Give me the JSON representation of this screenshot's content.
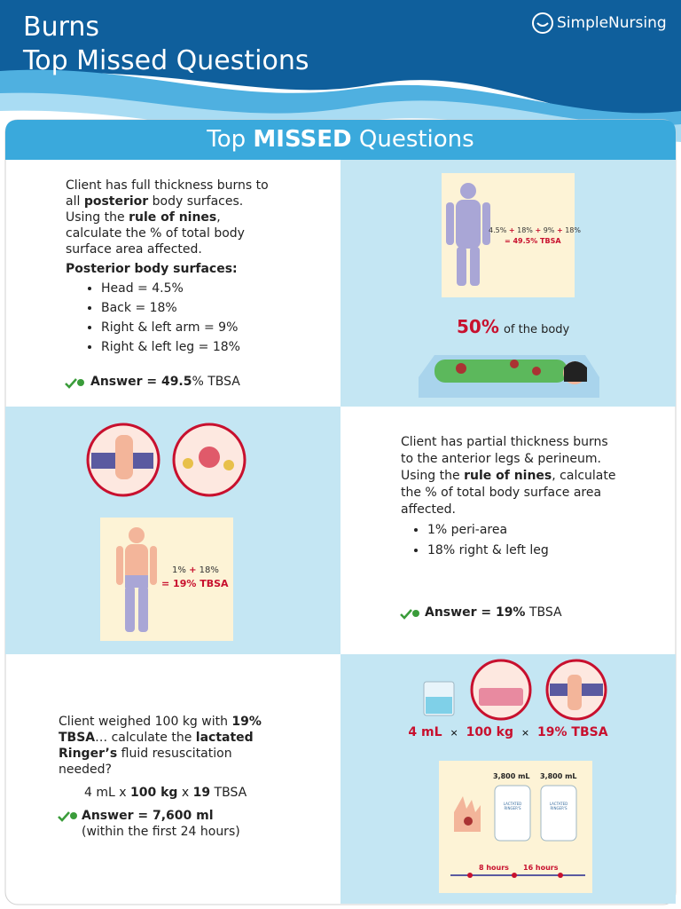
{
  "header": {
    "title": "Burns",
    "subtitle": "Top Missed Questions",
    "brand": "SimpleNursing"
  },
  "panel_title": {
    "pre": "Top ",
    "emphasis": "MISSED",
    "post": " Questions"
  },
  "question_1": {
    "text": [
      "Client has full thickness burns to all ",
      "posterior",
      " body surfaces. Using the ",
      "rule of nines",
      ", calculate the % of total body surface area affected."
    ],
    "subheading": "Posterior body surfaces:",
    "bullets": [
      "Head = 4.5%",
      "Back = 18%",
      "Right & left arm = 9%",
      "Right & left leg = 18%"
    ],
    "answer": [
      "Answer = 49.5",
      "% TBSA"
    ]
  },
  "figure_1": {
    "terms": [
      "4.5%",
      "+",
      "18%",
      "+",
      "9%",
      "+",
      "18%"
    ],
    "result": "= 49.5% TBSA",
    "highlight": "50%",
    "caption": "of the body"
  },
  "figure_2": {
    "terms": [
      "1%",
      "+",
      "18%"
    ],
    "result": "= 19% TBSA"
  },
  "question_2": {
    "text": [
      "Client has partial thickness burns to the anterior legs & perineum.",
      "Using the ",
      "rule of nines",
      ", calculate the % of total body surface area affected."
    ],
    "bullets": [
      "1% peri-area",
      "18% right & left leg"
    ],
    "answer": [
      "Answer = 19%",
      " TBSA"
    ]
  },
  "question_3": {
    "text": [
      "Client weighed 100 kg with ",
      "19% TBSA",
      "… calculate the ",
      "lactated Ringer’s",
      " fluid resuscitation needed?"
    ],
    "formula": [
      "4 mL x ",
      "100 kg",
      " x ",
      "19",
      " TBSA"
    ],
    "answer": "Answer = 7,600 ml",
    "note": "(within the first 24 hours)"
  },
  "figure_3": {
    "terms": [
      "4 mL",
      "×",
      "100 kg",
      "×",
      "19% TBSA"
    ],
    "volumes": [
      "3,800 mL",
      "3,800 mL"
    ],
    "bag_label": "LACTATED RINGER'S",
    "times": [
      "8 hours",
      "16 hours"
    ]
  }
}
